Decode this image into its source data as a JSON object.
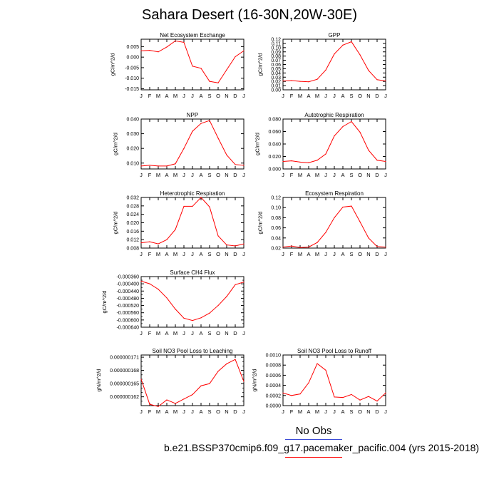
{
  "title": "Sahara Desert (16-30N,20W-30E)",
  "legend": {
    "label": "No Obs",
    "blue_color": "#3a4bd6",
    "red_color": "#ff0000"
  },
  "case_label": "b.e21.BSSP370cmip6.f09_g17.pacemaker_pacific.004 (yrs 2015-2018)",
  "line_color": "#ff0000",
  "chart_data": [
    {
      "type": "line",
      "title": "Net Ecosystem Exchange",
      "ylabel": "gC/m^2/d",
      "xticklabels": [
        "J",
        "F",
        "M",
        "A",
        "M",
        "J",
        "J",
        "A",
        "S",
        "O",
        "N",
        "D",
        "J"
      ],
      "ylim": [
        -0.0155,
        0.0085
      ],
      "yticks": [
        -0.015,
        -0.01,
        -0.005,
        0.0,
        0.005
      ],
      "yticklabels": [
        "-0.015",
        "-0.010",
        "-0.005",
        "0.000",
        "0.005"
      ],
      "x": [
        0,
        1,
        2,
        3,
        4,
        5,
        6,
        7,
        8,
        9,
        10,
        11,
        12
      ],
      "values": [
        0.003,
        0.0032,
        0.0025,
        0.0048,
        0.0077,
        0.007,
        -0.0043,
        -0.0053,
        -0.0115,
        -0.0122,
        -0.006,
        0.0002,
        0.003
      ]
    },
    {
      "type": "line",
      "title": "GPP",
      "ylabel": "gC/m^2/d",
      "xticklabels": [
        "J",
        "F",
        "M",
        "A",
        "M",
        "J",
        "J",
        "A",
        "S",
        "O",
        "N",
        "D",
        "J"
      ],
      "ylim": [
        0.0,
        0.12
      ],
      "yticks": [
        0.0,
        0.01,
        0.02,
        0.03,
        0.04,
        0.05,
        0.06,
        0.07,
        0.08,
        0.09,
        0.1,
        0.11,
        0.12
      ],
      "yticklabels": [
        "0.00",
        "0.01",
        "0.02",
        "0.03",
        "0.04",
        "0.05",
        "0.06",
        "0.07",
        "0.08",
        "0.09",
        "0.10",
        "0.11",
        "0.12"
      ],
      "x": [
        0,
        1,
        2,
        3,
        4,
        5,
        6,
        7,
        8,
        9,
        10,
        11,
        12
      ],
      "values": [
        0.021,
        0.022,
        0.02,
        0.019,
        0.025,
        0.047,
        0.085,
        0.106,
        0.114,
        0.083,
        0.046,
        0.024,
        0.021
      ]
    },
    {
      "type": "line",
      "title": "NPP",
      "ylabel": "gC/m^2/d",
      "xticklabels": [
        "J",
        "F",
        "M",
        "A",
        "M",
        "J",
        "J",
        "A",
        "S",
        "O",
        "N",
        "D",
        "J"
      ],
      "ylim": [
        0.006,
        0.04
      ],
      "yticks": [
        0.01,
        0.02,
        0.03,
        0.04
      ],
      "yticklabels": [
        "0.010",
        "0.020",
        "0.030",
        "0.040"
      ],
      "x": [
        0,
        1,
        2,
        3,
        4,
        5,
        6,
        7,
        8,
        9,
        10,
        11,
        12
      ],
      "values": [
        0.008,
        0.0085,
        0.008,
        0.008,
        0.0095,
        0.02,
        0.0317,
        0.037,
        0.039,
        0.027,
        0.0155,
        0.009,
        0.0085
      ]
    },
    {
      "type": "line",
      "title": "Autotrophic Respiration",
      "ylabel": "gC/m^2/d",
      "xticklabels": [
        "J",
        "F",
        "M",
        "A",
        "M",
        "J",
        "J",
        "A",
        "S",
        "O",
        "N",
        "D",
        "J"
      ],
      "ylim": [
        0.0,
        0.08
      ],
      "yticks": [
        0.0,
        0.02,
        0.04,
        0.06,
        0.08
      ],
      "yticklabels": [
        "0.000",
        "0.020",
        "0.040",
        "0.060",
        "0.080"
      ],
      "x": [
        0,
        1,
        2,
        3,
        4,
        5,
        6,
        7,
        8,
        9,
        10,
        11,
        12
      ],
      "values": [
        0.012,
        0.013,
        0.011,
        0.01,
        0.014,
        0.024,
        0.053,
        0.068,
        0.076,
        0.059,
        0.03,
        0.014,
        0.012
      ]
    },
    {
      "type": "line",
      "title": "Heterotrophic Respiration",
      "ylabel": "gC/m^2/d",
      "xticklabels": [
        "J",
        "F",
        "M",
        "A",
        "M",
        "J",
        "J",
        "A",
        "S",
        "O",
        "N",
        "D",
        "J"
      ],
      "ylim": [
        0.008,
        0.032
      ],
      "yticks": [
        0.008,
        0.012,
        0.016,
        0.02,
        0.024,
        0.028,
        0.032
      ],
      "yticklabels": [
        "0.008",
        "0.012",
        "0.016",
        "0.020",
        "0.024",
        "0.028",
        "0.032"
      ],
      "x": [
        0,
        1,
        2,
        3,
        4,
        5,
        6,
        7,
        8,
        9,
        10,
        11,
        12
      ],
      "values": [
        0.0105,
        0.011,
        0.01,
        0.012,
        0.0168,
        0.0278,
        0.0278,
        0.032,
        0.0275,
        0.0138,
        0.0095,
        0.009,
        0.01
      ]
    },
    {
      "type": "line",
      "title": "Ecosystem Respiration",
      "ylabel": "gC/m^2/d",
      "xticklabels": [
        "J",
        "F",
        "M",
        "A",
        "M",
        "J",
        "J",
        "A",
        "S",
        "O",
        "N",
        "D",
        "J"
      ],
      "ylim": [
        0.02,
        0.12
      ],
      "yticks": [
        0.02,
        0.04,
        0.06,
        0.08,
        0.1,
        0.12
      ],
      "yticklabels": [
        "0.02",
        "0.04",
        "0.06",
        "0.08",
        "0.10",
        "0.12"
      ],
      "x": [
        0,
        1,
        2,
        3,
        4,
        5,
        6,
        7,
        8,
        9,
        10,
        11,
        12
      ],
      "values": [
        0.022,
        0.024,
        0.021,
        0.022,
        0.031,
        0.051,
        0.08,
        0.101,
        0.103,
        0.072,
        0.04,
        0.023,
        0.022
      ]
    },
    {
      "type": "line",
      "title": "Surface CH4 Flux",
      "ylabel": "gC/m^2/d",
      "xticklabels": [
        "J",
        "F",
        "M",
        "A",
        "M",
        "J",
        "J",
        "A",
        "S",
        "O",
        "N",
        "D",
        "J"
      ],
      "ylim": [
        -0.00064,
        -0.00036
      ],
      "yticks": [
        -0.00064,
        -0.0006,
        -0.00056,
        -0.00052,
        -0.00048,
        -0.00044,
        -0.0004,
        -0.00036
      ],
      "yticklabels": [
        "-0.000640",
        "-0.000600",
        "-0.000560",
        "-0.000520",
        "-0.000480",
        "-0.000440",
        "-0.000400",
        "-0.000360"
      ],
      "minor_yticks": [
        -0.00062,
        -0.00058,
        -0.00054,
        -0.0005,
        -0.00046,
        -0.00042,
        -0.00038
      ],
      "x": [
        0,
        1,
        2,
        3,
        4,
        5,
        6,
        7,
        8,
        9,
        10,
        11,
        12
      ],
      "values": [
        -0.000385,
        -0.0004,
        -0.00043,
        -0.000478,
        -0.00054,
        -0.00059,
        -0.000603,
        -0.000588,
        -0.000562,
        -0.00052,
        -0.00047,
        -0.000405,
        -0.00039
      ]
    },
    {
      "type": "line",
      "title": "Soil NO3 Pool Loss to Leaching",
      "ylabel": "gN/m^2/d",
      "xticklabels": [
        "J",
        "F",
        "M",
        "A",
        "M",
        "J",
        "J",
        "A",
        "S",
        "O",
        "N",
        "D",
        "J"
      ],
      "ylim": [
        1.6e-07,
        1.715e-07
      ],
      "yticks": [
        1.62e-07,
        1.65e-07,
        1.68e-07,
        1.71e-07
      ],
      "yticklabels": [
        "0.000000162",
        "0.000000165",
        "0.000000168",
        "0.000000171"
      ],
      "minor_yticks": [
        1.61e-07,
        1.63e-07,
        1.64e-07,
        1.66e-07,
        1.67e-07,
        1.69e-07,
        1.7e-07
      ],
      "x": [
        0,
        1,
        2,
        3,
        4,
        5,
        6,
        7,
        8,
        9,
        10,
        11,
        12
      ],
      "values": [
        1.66e-07,
        1.603e-07,
        1.598e-07,
        1.613e-07,
        1.605e-07,
        1.615e-07,
        1.625e-07,
        1.645e-07,
        1.65e-07,
        1.678e-07,
        1.695e-07,
        1.705e-07,
        1.655e-07
      ]
    },
    {
      "type": "line",
      "title": "Soil NO3 Pool Loss to Runoff",
      "ylabel": "gN/m^2/d",
      "xticklabels": [
        "J",
        "F",
        "M",
        "A",
        "M",
        "J",
        "J",
        "A",
        "S",
        "O",
        "N",
        "D",
        "J"
      ],
      "ylim": [
        0.0,
        0.001
      ],
      "yticks": [
        0.0,
        0.0002,
        0.0004,
        0.0006,
        0.0008,
        0.001
      ],
      "yticklabels": [
        "0.0000",
        "0.0002",
        "0.0004",
        "0.0006",
        "0.0008",
        "0.0010"
      ],
      "x": [
        0,
        1,
        2,
        3,
        4,
        5,
        6,
        7,
        8,
        9,
        10,
        11,
        12
      ],
      "values": [
        0.00025,
        0.0002,
        0.00023,
        0.00045,
        0.00083,
        0.0007,
        0.00017,
        0.00016,
        0.00022,
        0.00011,
        0.00018,
        9e-05,
        0.00025
      ]
    }
  ]
}
